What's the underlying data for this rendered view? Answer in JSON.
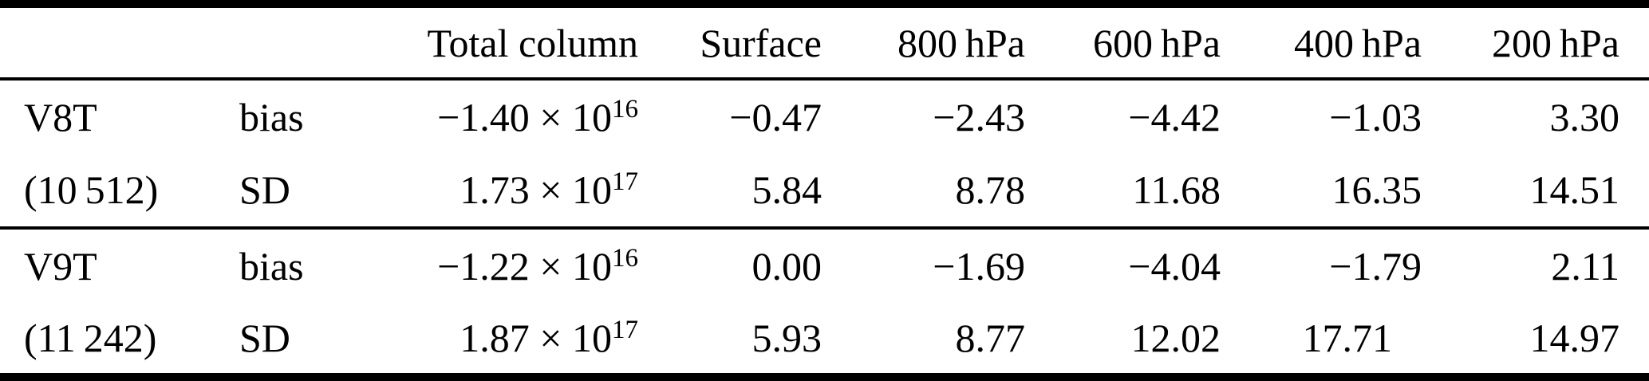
{
  "table": {
    "header": {
      "col_group": "",
      "col_stat": "",
      "col_total": "Total column",
      "col_surface": "Surface",
      "col_800": "800 hPa",
      "col_600": "600 hPa",
      "col_400": "400 hPa",
      "col_200": "200 hPa"
    },
    "rows": [
      {
        "group": "V8T",
        "stat": "bias",
        "total_column": {
          "mantissa": "−1.40 × 10",
          "exponent": "16"
        },
        "surface": "−0.47",
        "hpa_800": "−2.43",
        "hpa_600": "−4.42",
        "hpa_400": "−1.03",
        "hpa_200": "3.30"
      },
      {
        "group": "(10 512)",
        "stat": "SD",
        "total_column": {
          "mantissa": "1.73 × 10",
          "exponent": "17"
        },
        "surface": "5.84",
        "hpa_800": "8.78",
        "hpa_600": "11.68",
        "hpa_400": "16.35",
        "hpa_200": "14.51"
      },
      {
        "group": "V9T",
        "stat": "bias",
        "total_column": {
          "mantissa": "−1.22 × 10",
          "exponent": "16"
        },
        "surface": "0.00",
        "hpa_800": "−1.69",
        "hpa_600": "−4.04",
        "hpa_400": "−1.79",
        "hpa_200": "2.11"
      },
      {
        "group": "(11 242)",
        "stat": "SD",
        "total_column": {
          "mantissa": "1.87 × 10",
          "exponent": "17"
        },
        "surface": "5.93",
        "hpa_800": "8.77",
        "hpa_600": "12.02",
        "hpa_400": "17.71",
        "hpa_200": "14.97"
      }
    ],
    "colors": {
      "text": "#000000",
      "rule": "#000000",
      "background": "#ffffff"
    }
  }
}
